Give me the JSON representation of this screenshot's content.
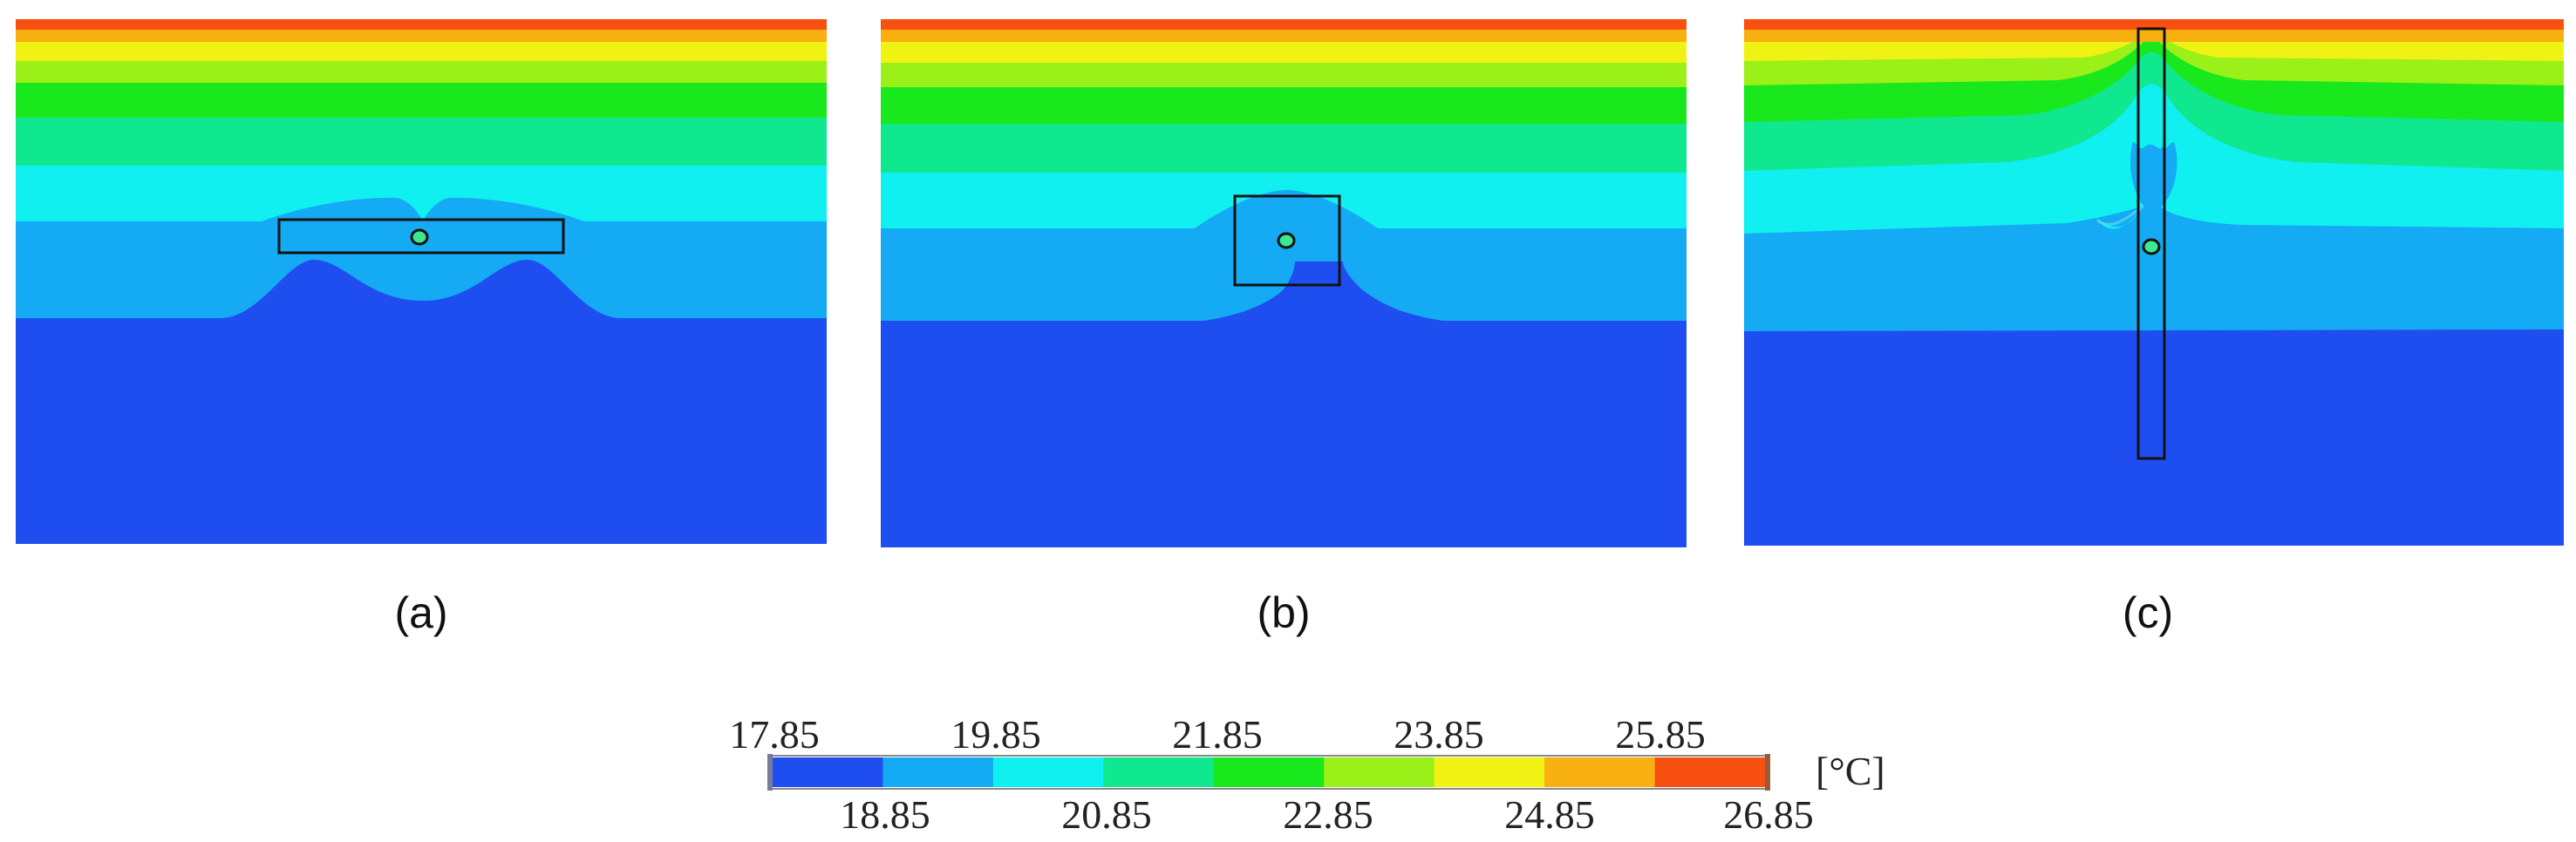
{
  "panels": [
    {
      "id": "a",
      "label": "(a)"
    },
    {
      "id": "b",
      "label": "(b)"
    },
    {
      "id": "c",
      "label": "(c)"
    }
  ],
  "colorbar": {
    "unit": "[°C]",
    "top_labels": [
      "17.85",
      "19.85",
      "21.85",
      "23.85",
      "25.85"
    ],
    "bottom_labels": [
      "18.85",
      "20.85",
      "22.85",
      "24.85",
      "26.85"
    ],
    "levels": [
      {
        "from": 17.85,
        "to": 18.85,
        "color": "#1f4ef0"
      },
      {
        "from": 18.85,
        "to": 19.85,
        "color": "#14aaf4"
      },
      {
        "from": 19.85,
        "to": 20.85,
        "color": "#10f0f0"
      },
      {
        "from": 20.85,
        "to": 21.85,
        "color": "#10e890"
      },
      {
        "from": 21.85,
        "to": 22.85,
        "color": "#18e81c"
      },
      {
        "from": 22.85,
        "to": 23.85,
        "color": "#9af018"
      },
      {
        "from": 23.85,
        "to": 24.85,
        "color": "#f0f214"
      },
      {
        "from": 24.85,
        "to": 25.85,
        "color": "#f8b010"
      },
      {
        "from": 25.85,
        "to": 26.85,
        "color": "#f85010"
      }
    ]
  }
}
